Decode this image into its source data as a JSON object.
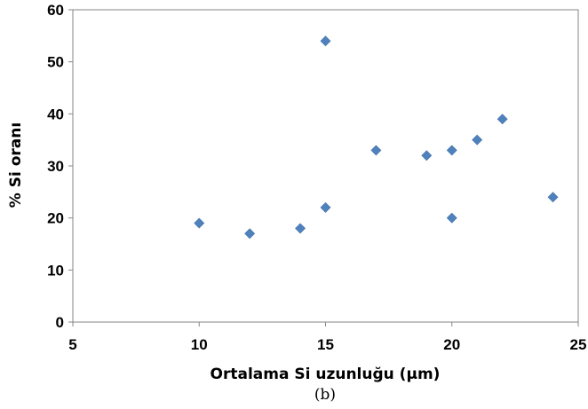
{
  "chart_data": {
    "type": "scatter",
    "xlabel": "Ortalama Si uzunluğu (μm)",
    "ylabel": "% Si oranı",
    "xlim": [
      5,
      25
    ],
    "ylim": [
      0,
      60
    ],
    "x_ticks": [
      5,
      10,
      15,
      20,
      25
    ],
    "y_ticks": [
      0,
      10,
      20,
      30,
      40,
      50,
      60
    ],
    "grid": false,
    "legend": "none",
    "marker": "diamond",
    "marker_color": "#4F81BD",
    "points": [
      {
        "x": 10,
        "y": 19
      },
      {
        "x": 12,
        "y": 17
      },
      {
        "x": 14,
        "y": 18
      },
      {
        "x": 15,
        "y": 22
      },
      {
        "x": 15,
        "y": 54
      },
      {
        "x": 17,
        "y": 33
      },
      {
        "x": 19,
        "y": 32
      },
      {
        "x": 20,
        "y": 33
      },
      {
        "x": 20,
        "y": 20
      },
      {
        "x": 21,
        "y": 35
      },
      {
        "x": 22,
        "y": 39
      },
      {
        "x": 24,
        "y": 24
      }
    ]
  },
  "caption": "(b)"
}
